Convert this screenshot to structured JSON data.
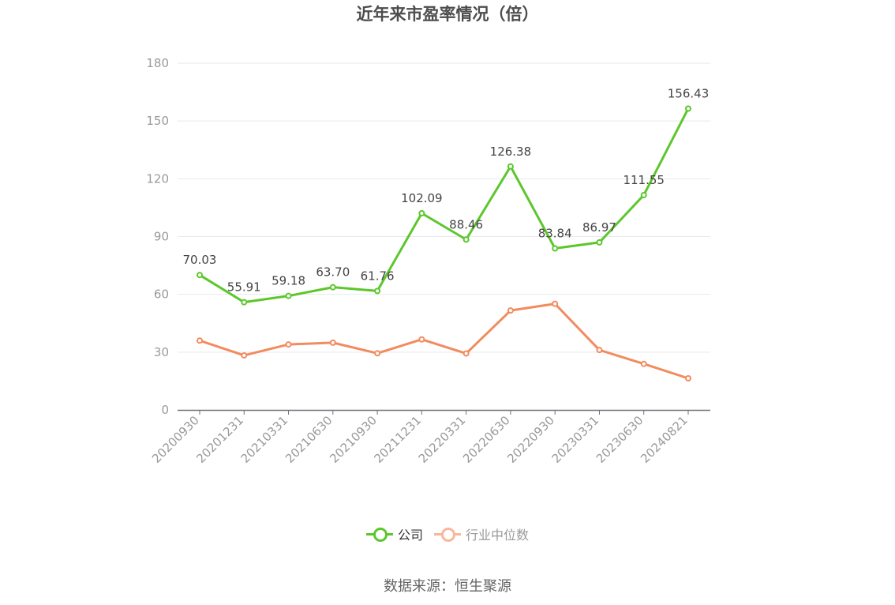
{
  "chart_data": {
    "type": "line",
    "title": "近年来市盈率情况（倍）",
    "categories": [
      "20200930",
      "20201231",
      "20210331",
      "20210630",
      "20210930",
      "20211231",
      "20220331",
      "20220630",
      "20220930",
      "20230331",
      "20230630",
      "20240821"
    ],
    "series": [
      {
        "name": "公司",
        "color": "#5cc72c",
        "values": [
          70.03,
          55.91,
          59.18,
          63.7,
          61.76,
          102.09,
          88.46,
          126.38,
          83.84,
          86.97,
          111.55,
          156.43
        ],
        "labels": [
          "70.03",
          "55.91",
          "59.18",
          "63.70",
          "61.76",
          "102.09",
          "88.46",
          "126.38",
          "83.84",
          "86.97",
          "111.55",
          "156.43"
        ]
      },
      {
        "name": "行业中位数",
        "color": "#f28b5e",
        "legend_color": "#f8b79c",
        "values": [
          36.0,
          28.3,
          34.0,
          34.9,
          29.4,
          36.6,
          29.3,
          51.6,
          55.1,
          31.1,
          23.9,
          16.4
        ]
      }
    ],
    "yticks": [
      0,
      30,
      60,
      90,
      120,
      150,
      180
    ],
    "ylim": [
      0,
      180
    ],
    "grid": true,
    "legend_position": "bottom-center",
    "source": "数据来源：恒生聚源"
  }
}
